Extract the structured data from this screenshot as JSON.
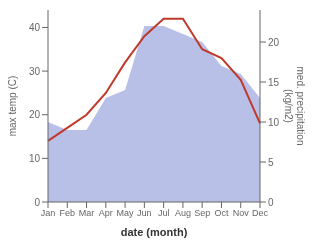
{
  "chart_data": {
    "type": "line",
    "categories": [
      "Jan",
      "Feb",
      "Mar",
      "Apr",
      "May",
      "Jun",
      "Jul",
      "Aug",
      "Sep",
      "Oct",
      "Nov",
      "Dec"
    ],
    "series": [
      {
        "type": "area",
        "axis": "y2",
        "color": "#b8c0e8",
        "values": [
          10,
          9,
          9,
          13,
          14,
          22,
          22,
          21,
          20,
          17,
          16,
          13
        ]
      },
      {
        "type": "line",
        "color": "#c0392b",
        "values": [
          14,
          17,
          20,
          25,
          32,
          38,
          42,
          42,
          35,
          33,
          28,
          18
        ]
      }
    ],
    "xlabel": "date (month)",
    "ylabel": "max temp (C)",
    "y2label": "med. precipitation\n(kg/m2)",
    "ylim": [
      0,
      44
    ],
    "yticks": [
      0,
      10,
      20,
      30,
      40
    ],
    "y2lim": [
      0,
      24
    ],
    "y2ticks": [
      0,
      5,
      10,
      15,
      20
    ],
    "grid": false
  }
}
